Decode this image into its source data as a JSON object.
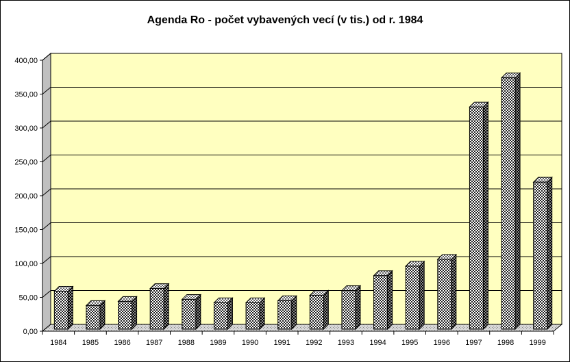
{
  "chart_data": {
    "type": "bar",
    "title": "Agenda Ro - počet vybavených vecí (v tis.) od r. 1984",
    "categories": [
      "1984",
      "1985",
      "1986",
      "1987",
      "1988",
      "1989",
      "1990",
      "1991",
      "1992",
      "1993",
      "1994",
      "1995",
      "1996",
      "1997",
      "1998",
      "1999"
    ],
    "values": [
      56,
      35,
      41,
      60,
      44,
      39,
      39,
      42,
      50,
      57,
      79,
      93,
      103,
      328,
      371,
      217
    ],
    "yticks": [
      "0,00",
      "50,00",
      "100,00",
      "150,00",
      "200,00",
      "250,00",
      "300,00",
      "350,00",
      "400,00"
    ],
    "ylim": [
      0,
      400
    ],
    "grid": true,
    "legend": "none",
    "colors": {
      "plot_background": "#ffffc0",
      "bar_pattern": "checkered black and white",
      "floor": "#c0c0c0"
    }
  }
}
